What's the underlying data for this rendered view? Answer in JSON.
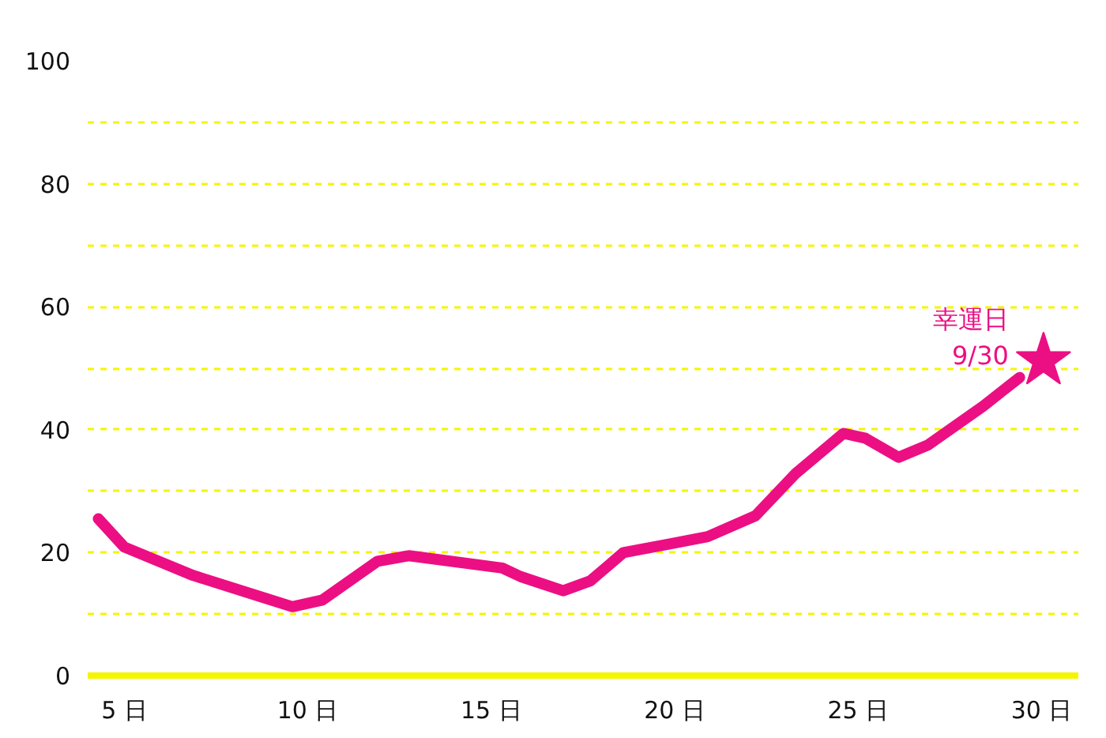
{
  "chart_data": {
    "type": "line",
    "annotations": [
      {
        "text": "幸運日\n9/30",
        "x": 30.05,
        "y": 51.2
      }
    ],
    "series": [
      {
        "color": "#ec0f83",
        "x": [
          4.29,
          5,
          6.87,
          9.58,
          10.4,
          11.9,
          12.75,
          15.3,
          15.8,
          16.96,
          17.7,
          18.6,
          19.95,
          20.9,
          22.2,
          23.3,
          24.6,
          25.2,
          26.1,
          26.9,
          28.4,
          29.4
        ],
        "values": [
          25.5,
          20.9,
          16.3,
          11.2,
          12.3,
          18.6,
          19.5,
          17.5,
          16.1,
          13.8,
          15.4,
          20,
          21.5,
          22.6,
          26,
          32.9,
          39.4,
          38.6,
          35.5,
          37.5,
          43.8,
          48.5
        ]
      },
      {
        "type": "scatter",
        "marker": "star",
        "color": "#ec0f83",
        "x": [
          30.05
        ],
        "values": [
          51.2
        ]
      }
    ],
    "xlim": [
      4,
      31
    ],
    "xticks": [
      {
        "value": 5,
        "label": "5 日"
      },
      {
        "value": 10,
        "label": "10 日"
      },
      {
        "value": 15,
        "label": "15 日"
      },
      {
        "value": 20,
        "label": "20 日"
      },
      {
        "value": 25,
        "label": "25 日"
      },
      {
        "value": 30,
        "label": "30 日"
      }
    ],
    "ylim": [
      0,
      100
    ],
    "yticks": [
      0,
      {
        "value": 10,
        "label": null
      },
      20,
      {
        "value": 30,
        "label": null
      },
      40,
      {
        "value": 50,
        "label": null
      },
      60,
      {
        "value": 70,
        "label": null
      },
      80,
      {
        "value": 90,
        "label": null
      },
      100
    ],
    "grid": "y",
    "line_style": "solid"
  }
}
